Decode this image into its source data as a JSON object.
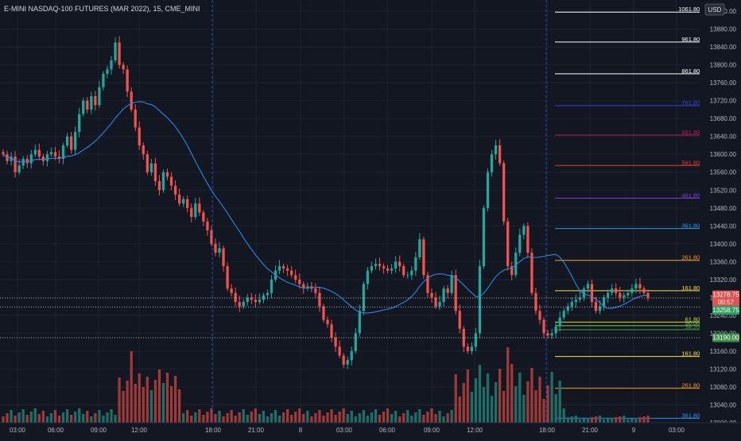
{
  "title": "E-MINI NASDAQ-100 FUTURES (MAR 2022), 15, CME_MINI",
  "currency": "USD",
  "countdown": "00:57",
  "price_tags": [
    {
      "value": "13278.75",
      "color": "#e0534f"
    },
    {
      "value": "13258.75",
      "color": "#2f9e5f"
    },
    {
      "value": "13190.00",
      "color": "#3c8f4a"
    }
  ],
  "y_axis": {
    "labels": [
      "13920.00",
      "13880.00",
      "13840.00",
      "13800.00",
      "13760.00",
      "13720.00",
      "13680.00",
      "13640.00",
      "13600.00",
      "13560.00",
      "13520.00",
      "13480.00",
      "13440.00",
      "13400.00",
      "13360.00",
      "13320.00",
      "13280.00",
      "13240.00",
      "13200.00",
      "13160.00",
      "13120.00",
      "13080.00",
      "13040.00",
      "13000.00"
    ]
  },
  "x_axis": {
    "labels": [
      "03:00",
      "06:00",
      "09:00",
      "12:00",
      "18:00",
      "21:00",
      "8",
      "03:00",
      "06:00",
      "09:00",
      "12:00",
      "18:00",
      "21:00",
      "9",
      "03:00"
    ]
  },
  "fib_levels": [
    {
      "label": "1061.80%",
      "price": 13918,
      "color": "#ffffff"
    },
    {
      "label": "961.80%",
      "price": 13851,
      "color": "#ffffff"
    },
    {
      "label": "861.80%",
      "price": 13780,
      "color": "#ffffff"
    },
    {
      "label": "761.80%",
      "price": 13709,
      "color": "#3b3fd6"
    },
    {
      "label": "661.80%",
      "price": 13643,
      "color": "#c2185b"
    },
    {
      "label": "561.80%",
      "price": 13575,
      "color": "#e53935"
    },
    {
      "label": "461.80%",
      "price": 13502,
      "color": "#7b3fd6"
    },
    {
      "label": "361.80%",
      "price": 13434,
      "color": "#2196f3"
    },
    {
      "label": "261.80%",
      "price": 13363,
      "color": "#f39c12"
    },
    {
      "label": "161.80%",
      "price": 13295,
      "color": "#f5e04a"
    },
    {
      "label": "61.80%",
      "price": 13225,
      "color": "#cddc39"
    },
    {
      "label": "50.00%",
      "price": 13217,
      "color": "#8bc34a"
    },
    {
      "label": "38.20%",
      "price": 13208,
      "color": "#43a047"
    },
    {
      "label": "161.80%",
      "price": 13148,
      "color": "#f5e04a"
    },
    {
      "label": "261.80%",
      "price": 13077,
      "color": "#f39c12"
    },
    {
      "label": "361.80%",
      "price": 13010,
      "color": "#2196f3"
    }
  ],
  "colors": {
    "up": "#26a69a",
    "down": "#ef5350",
    "ma": "#2e86de",
    "vol_up": "#1f6e68",
    "vol_down": "#9e3a38"
  },
  "chart_data": {
    "type": "candlestick",
    "title": "E-MINI NASDAQ-100 FUTURES (MAR 2022), 15, CME_MINI",
    "ylim": [
      13000,
      13945
    ],
    "grid": true,
    "series": [
      {
        "kind": "candles",
        "description": "15-minute OHLC, approximate close path",
        "closes": [
          13600,
          13585,
          13595,
          13560,
          13575,
          13590,
          13580,
          13600,
          13610,
          13595,
          13585,
          13600,
          13605,
          13595,
          13590,
          13620,
          13640,
          13610,
          13650,
          13690,
          13720,
          13700,
          13730,
          13710,
          13750,
          13780,
          13790,
          13810,
          13850,
          13800,
          13790,
          13740,
          13700,
          13660,
          13620,
          13600,
          13560,
          13580,
          13540,
          13520,
          13560,
          13550,
          13530,
          13510,
          13490,
          13500,
          13480,
          13460,
          13490,
          13470,
          13450,
          13430,
          13400,
          13380,
          13390,
          13350,
          13300,
          13290,
          13270,
          13260,
          13270,
          13280,
          13275,
          13270,
          13275,
          13285,
          13290,
          13320,
          13340,
          13350,
          13345,
          13340,
          13330,
          13320,
          13310,
          13300,
          13305,
          13300,
          13290,
          13260,
          13230,
          13220,
          13190,
          13170,
          13150,
          13130,
          13140,
          13160,
          13200,
          13250,
          13310,
          13340,
          13350,
          13355,
          13350,
          13345,
          13340,
          13345,
          13360,
          13350,
          13330,
          13330,
          13340,
          13370,
          13410,
          13330,
          13290,
          13280,
          13260,
          13270,
          13300,
          13290,
          13330,
          13250,
          13210,
          13170,
          13160,
          13170,
          13200,
          13350,
          13480,
          13560,
          13600,
          13620,
          13580,
          13450,
          13350,
          13330,
          13380,
          13420,
          13440,
          13380,
          13290,
          13250,
          13230,
          13200,
          13195,
          13200,
          13215,
          13235,
          13250,
          13260,
          13270,
          13275,
          13280,
          13300,
          13310,
          13270,
          13250,
          13260,
          13280,
          13290,
          13300,
          13290,
          13280,
          13285,
          13290,
          13300,
          13310,
          13300,
          13290,
          13280
        ]
      },
      {
        "kind": "moving_average",
        "name": "MA",
        "color": "#2e86de"
      },
      {
        "kind": "volume",
        "description": "relative bar heights"
      }
    ]
  }
}
